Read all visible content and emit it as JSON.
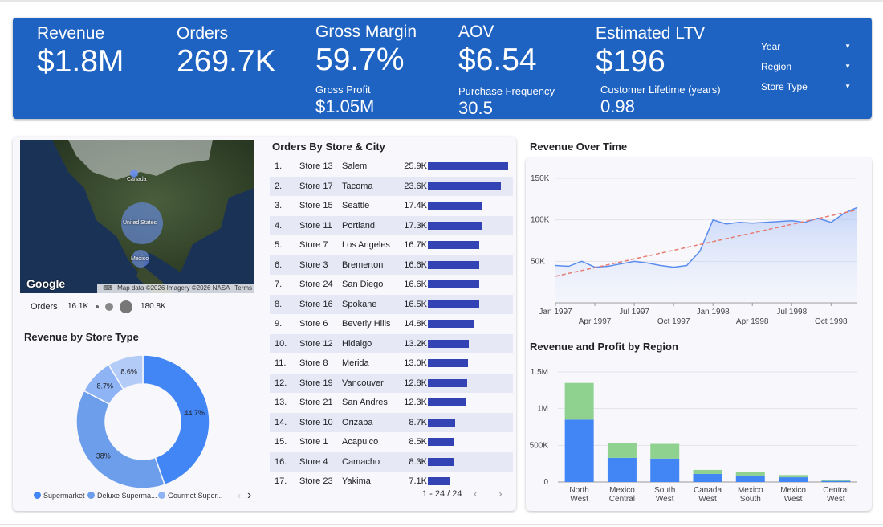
{
  "kpis": {
    "revenue": {
      "label": "Revenue",
      "value": "$1.8M"
    },
    "orders": {
      "label": "Orders",
      "value": "269.7K"
    },
    "gross_margin": {
      "label": "Gross Margin",
      "value": "59.7%",
      "sub_label": "Gross Profit",
      "sub_value": "$1.05M"
    },
    "aov": {
      "label": "AOV",
      "value": "$6.54",
      "sub_label": "Purchase Frequency",
      "sub_value": "30.5"
    },
    "ltv": {
      "label": "Estimated LTV",
      "value": "$196",
      "sub_label": "Customer Lifetime (years)",
      "sub_value": "0.98"
    }
  },
  "filters": [
    {
      "label": "Year"
    },
    {
      "label": "Region"
    },
    {
      "label": "Store Type"
    }
  ],
  "map": {
    "country_labels": [
      "Canada",
      "United States",
      "Mexico"
    ],
    "logo": "Google",
    "attribution": "Map data ©2026 Imagery ©2026 NASA",
    "terms": "Terms",
    "keyboard_icon": "keyboard-icon",
    "legend": {
      "label": "Orders",
      "min": "16.1K",
      "max": "180.8K"
    }
  },
  "orders_table": {
    "title": "Orders By Store & City",
    "bar_color": "#3343b4",
    "max_value": 25.9,
    "rows": [
      {
        "rank": "1.",
        "store": "Store 13",
        "city": "Salem",
        "value_label": "25.9K",
        "value": 25.9
      },
      {
        "rank": "2.",
        "store": "Store 17",
        "city": "Tacoma",
        "value_label": "23.6K",
        "value": 23.6
      },
      {
        "rank": "3.",
        "store": "Store 15",
        "city": "Seattle",
        "value_label": "17.4K",
        "value": 17.4
      },
      {
        "rank": "4.",
        "store": "Store 11",
        "city": "Portland",
        "value_label": "17.3K",
        "value": 17.3
      },
      {
        "rank": "5.",
        "store": "Store 7",
        "city": "Los Angeles",
        "value_label": "16.7K",
        "value": 16.7
      },
      {
        "rank": "6.",
        "store": "Store 3",
        "city": "Bremerton",
        "value_label": "16.6K",
        "value": 16.6
      },
      {
        "rank": "7.",
        "store": "Store 24",
        "city": "San Diego",
        "value_label": "16.6K",
        "value": 16.6
      },
      {
        "rank": "8.",
        "store": "Store 16",
        "city": "Spokane",
        "value_label": "16.5K",
        "value": 16.5
      },
      {
        "rank": "9.",
        "store": "Store 6",
        "city": "Beverly Hills",
        "value_label": "14.8K",
        "value": 14.8
      },
      {
        "rank": "10.",
        "store": "Store 12",
        "city": "Hidalgo",
        "value_label": "13.2K",
        "value": 13.2
      },
      {
        "rank": "11.",
        "store": "Store 8",
        "city": "Merida",
        "value_label": "13.0K",
        "value": 13.0
      },
      {
        "rank": "12.",
        "store": "Store 19",
        "city": "Vancouver",
        "value_label": "12.8K",
        "value": 12.8
      },
      {
        "rank": "13.",
        "store": "Store 21",
        "city": "San Andres",
        "value_label": "12.3K",
        "value": 12.3
      },
      {
        "rank": "14.",
        "store": "Store 10",
        "city": "Orizaba",
        "value_label": "8.7K",
        "value": 8.7
      },
      {
        "rank": "15.",
        "store": "Store 1",
        "city": "Acapulco",
        "value_label": "8.5K",
        "value": 8.5
      },
      {
        "rank": "16.",
        "store": "Store 4",
        "city": "Camacho",
        "value_label": "8.3K",
        "value": 8.3
      },
      {
        "rank": "17.",
        "store": "Store 23",
        "city": "Yakima",
        "value_label": "7.1K",
        "value": 7.1
      }
    ],
    "pagination": "1 - 24 / 24",
    "prev_icon": "chevron-left-icon",
    "next_icon": "chevron-right-icon"
  },
  "store_type": {
    "title": "Revenue by Store Type",
    "legend_next_icon": "chevron-right-icon",
    "legend_prev_icon": "chevron-left-icon"
  },
  "revenue_time": {
    "title": "Revenue Over Time"
  },
  "region": {
    "title": "Revenue and Profit by Region"
  },
  "chart_data": [
    {
      "type": "pie",
      "title": "Revenue by Store Type",
      "donut": true,
      "slices": [
        {
          "name": "Supermarket",
          "value": 44.7,
          "label": "44.7%",
          "color": "#4285f4"
        },
        {
          "name": "Deluxe Superma...",
          "value": 38.0,
          "label": "38%",
          "color": "#6d9eeb"
        },
        {
          "name": "Gourmet Super...",
          "value": 8.7,
          "label": "8.7%",
          "color": "#8fb4f5"
        },
        {
          "name": "",
          "value": 8.6,
          "label": "8.6%",
          "color": "#b3cbf7"
        }
      ],
      "legend_position": "bottom"
    },
    {
      "type": "line",
      "title": "Revenue Over Time",
      "x_unit": "month",
      "x_start": "1997-01",
      "x_ticks_upper": [
        "Jan 1997",
        "Jul 1997",
        "Jan 1998",
        "Jul 1998"
      ],
      "x_ticks_lower": [
        "Apr 1997",
        "Oct 1997",
        "Apr 1998",
        "Oct 1998"
      ],
      "ylim": [
        0,
        150000
      ],
      "y_ticks": [
        "50K",
        "100K",
        "150K"
      ],
      "series": [
        {
          "values": [
            45000,
            44000,
            50000,
            43000,
            44000,
            47000,
            50000,
            48000,
            45000,
            43000,
            45000,
            62000,
            100000,
            95000,
            97000,
            96000,
            97000,
            98000,
            99000,
            97000,
            102000,
            97000,
            108000,
            115000
          ],
          "color": "#5b8def",
          "area": true
        },
        {
          "name": "",
          "trend": true,
          "start": 32000,
          "end": 112000,
          "color": "#e67c73",
          "dashed": true
        }
      ],
      "grid": true
    },
    {
      "type": "bar",
      "stacked": true,
      "title": "Revenue and Profit by Region",
      "categories": [
        "North West",
        "Mexico Central",
        "South West",
        "Canada West",
        "Mexico South",
        "Mexico West",
        "Central West"
      ],
      "ylim": [
        0,
        1500000
      ],
      "y_ticks": [
        "0",
        "500K",
        "1M",
        "1.5M"
      ],
      "series": [
        {
          "values": [
            850000,
            330000,
            320000,
            110000,
            90000,
            65000,
            15000
          ],
          "color": "#4285f4"
        },
        {
          "values": [
            500000,
            200000,
            200000,
            55000,
            50000,
            30000,
            10000
          ],
          "color": "#8fd18e"
        }
      ]
    }
  ]
}
